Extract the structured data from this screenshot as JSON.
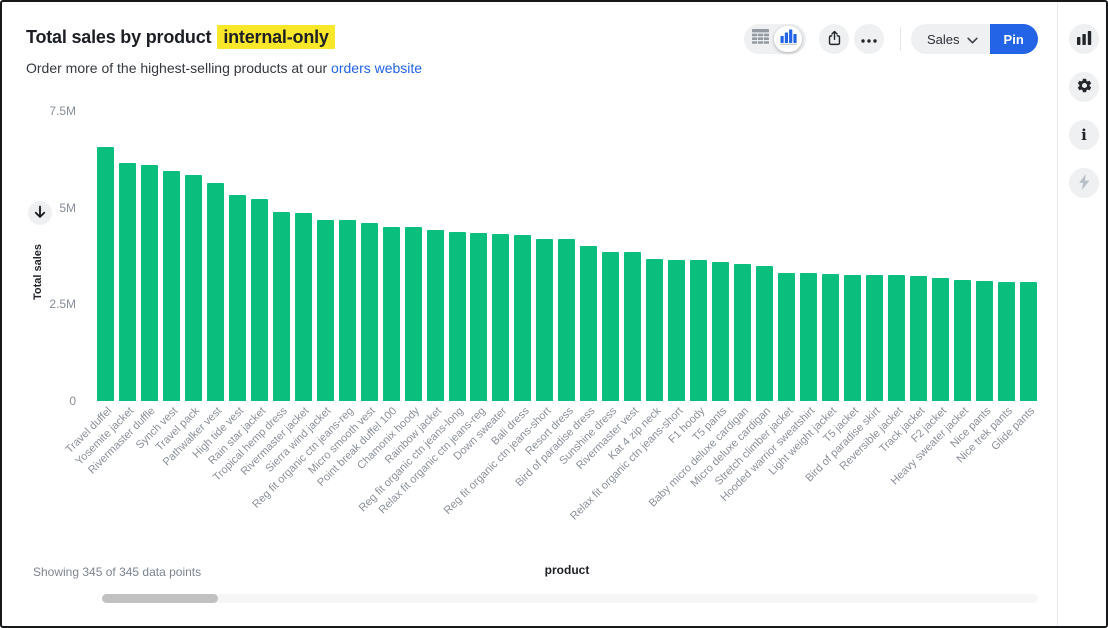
{
  "header": {
    "title": "Total sales by product",
    "title_highlight": "internal-only",
    "subtitle_prefix": "Order more of the highest-selling products at our ",
    "subtitle_link": "orders website"
  },
  "toolbar": {
    "view_toggle": {
      "options": [
        "table-view",
        "chart-view"
      ],
      "selected": "chart-view"
    },
    "sales_label": "Sales",
    "pin_label": "Pin",
    "icons": [
      "table-icon",
      "bar-chart-icon",
      "share-icon",
      "ellipsis-icon",
      "chevron-down-icon"
    ]
  },
  "side_panel": {
    "icons": [
      "bar-chart-icon",
      "gear-icon",
      "info-icon",
      "lightning-icon"
    ]
  },
  "status": {
    "showing_text": "Showing 345 of 345 data points"
  },
  "colors": {
    "bar_green": "#0abf7d",
    "accent_blue": "#2264e5",
    "highlight_yellow": "#fbe72a",
    "axis_text_gray": "#8a9099",
    "button_gray": "#eef0f2"
  },
  "chart_data": {
    "type": "bar",
    "title": "Total sales by product",
    "xlabel": "product",
    "ylabel": "Total sales",
    "ylim": [
      0,
      7500000
    ],
    "ytick_values": [
      0,
      2.5,
      5,
      7.5
    ],
    "ytick_labels": [
      "0",
      "2.5M",
      "5M",
      "7.5M"
    ],
    "grid": false,
    "legend": false,
    "sort": "descending",
    "units": "millions",
    "categories": [
      "Travel duffel",
      "Yosemite jacket",
      "Rivermaster duffle",
      "Synch vest",
      "Travel pack",
      "Pathwalker vest",
      "High tide vest",
      "Rain star jacket",
      "Tropical hemp dress",
      "Rivermaster jacket",
      "Sierra wind jacket",
      "Reg fit organic ctn jeans-reg",
      "Micro smooth vest",
      "Point break duffel 100",
      "Chamonix hoody",
      "Rainbow jacket",
      "Reg fit organic ctn jeans-long",
      "Relax fit organic ctn jeans-reg",
      "Down sweater",
      "Bali dress",
      "Reg fit organic ctn jeans-short",
      "Resort dress",
      "Bird of paradise dress",
      "Sunshine dress",
      "Rivermaster vest",
      "Kat 4 zip neck",
      "Relax fit organic ctn jeans-short",
      "F1 hoody",
      "T5 pants",
      "Baby micro deluxe cardigan",
      "Micro deluxe cardigan",
      "Stretch climber jacket",
      "Hooded warrior sweatshirt",
      "Light weight jacket",
      "T5 jacket",
      "Bird of paradise skirt",
      "Reversible jacket",
      "Track jacket",
      "F2 jacket",
      "Heavy sweater jacket",
      "Nice pants",
      "Nice trek pants",
      "Glide pants"
    ],
    "values_millions": [
      6.56,
      6.15,
      6.11,
      5.94,
      5.85,
      5.64,
      5.32,
      5.22,
      4.9,
      4.87,
      4.68,
      4.67,
      4.61,
      4.5,
      4.49,
      4.42,
      4.37,
      4.35,
      4.33,
      4.3,
      4.19,
      4.18,
      4.02,
      3.86,
      3.85,
      3.67,
      3.66,
      3.64,
      3.6,
      3.54,
      3.49,
      3.32,
      3.31,
      3.28,
      3.27,
      3.26,
      3.25,
      3.24,
      3.18,
      3.14,
      3.1,
      3.09,
      3.08
    ]
  }
}
